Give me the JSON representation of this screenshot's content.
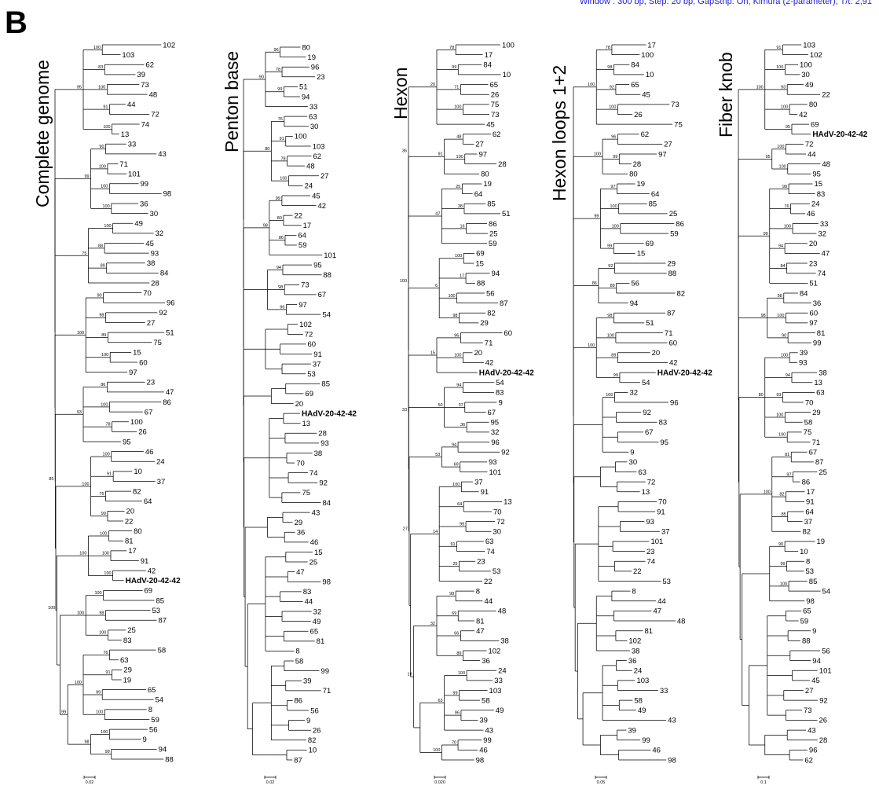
{
  "figure": {
    "panel_label": "B",
    "settings_text": "Window : 300 bp, Step: 20 bp, GapStrip: On, Kimura (2-parameter), T/t: 2,91",
    "settings_color": "#1f1fd6",
    "highlight_label": "HAdV-20-42-42"
  },
  "trees": [
    {
      "title": "Complete genome",
      "scale_label": "0.02",
      "leaves": [
        "102",
        "103",
        "62",
        "39",
        "73",
        "48",
        "44",
        "72",
        "74",
        "13",
        "33",
        "43",
        "71",
        "101",
        "99",
        "98",
        "36",
        "30",
        "49",
        "32",
        "45",
        "93",
        "38",
        "84",
        "28",
        "70",
        "96",
        "92",
        "27",
        "51",
        "75",
        "15",
        "60",
        "97",
        "23",
        "47",
        "86",
        "67",
        "100",
        "26",
        "95",
        "46",
        "24",
        "10",
        "37",
        "82",
        "64",
        "20",
        "22",
        "80",
        "81",
        "17",
        "91",
        "42",
        "HAdV-20-42-42",
        "69",
        "85",
        "53",
        "87",
        "25",
        "83",
        "58",
        "63",
        "29",
        "19",
        "65",
        "54",
        "8",
        "59",
        "56",
        "9",
        "94",
        "88"
      ],
      "support_values": [
        "100",
        "83",
        "100",
        "91",
        "100",
        "95",
        "90",
        "100",
        "100",
        "100",
        "99",
        "100",
        "88",
        "89",
        "75",
        "90",
        "98",
        "89",
        "100",
        "100",
        "86",
        "100",
        "78",
        "93",
        "100",
        "91",
        "75",
        "99",
        "100",
        "100",
        "100",
        "100",
        "100",
        "100",
        "98",
        "100",
        "100",
        "76",
        "91",
        "99",
        "100",
        "100",
        "100",
        "99",
        "98",
        "99",
        "100",
        "85"
      ]
    },
    {
      "title": "Penton base",
      "scale_label": "0.02",
      "leaves": [
        "80",
        "19",
        "96",
        "23",
        "51",
        "94",
        "33",
        "63",
        "30",
        "100",
        "103",
        "62",
        "48",
        "27",
        "24",
        "45",
        "42",
        "22",
        "17",
        "64",
        "59",
        "101",
        "95",
        "88",
        "73",
        "67",
        "97",
        "54",
        "102",
        "72",
        "60",
        "91",
        "37",
        "53",
        "85",
        "69",
        "20",
        "HAdV-20-42-42",
        "13",
        "28",
        "93",
        "38",
        "70",
        "74",
        "92",
        "75",
        "84",
        "43",
        "29",
        "36",
        "46",
        "15",
        "25",
        "47",
        "98",
        "83",
        "44",
        "32",
        "49",
        "65",
        "81",
        "8",
        "58",
        "99",
        "39",
        "71",
        "86",
        "56",
        "9",
        "26",
        "82",
        "10",
        "87"
      ],
      "support_values": [
        "96",
        "78",
        "99",
        "90",
        "76",
        "91",
        "78",
        "100",
        "80",
        "99",
        "80",
        "86",
        "98",
        "94",
        "98",
        "96"
      ]
    },
    {
      "title": "Hexon",
      "scale_label": "0.020",
      "leaves": [
        "100",
        "17",
        "84",
        "10",
        "65",
        "26",
        "75",
        "73",
        "45",
        "62",
        "27",
        "97",
        "28",
        "80",
        "19",
        "64",
        "85",
        "51",
        "86",
        "25",
        "59",
        "69",
        "15",
        "94",
        "88",
        "56",
        "87",
        "82",
        "29",
        "60",
        "71",
        "20",
        "42",
        "HAdV-20-42-42",
        "54",
        "83",
        "9",
        "67",
        "95",
        "32",
        "96",
        "92",
        "93",
        "101",
        "37",
        "91",
        "13",
        "70",
        "72",
        "30",
        "63",
        "74",
        "23",
        "53",
        "22",
        "8",
        "44",
        "48",
        "81",
        "47",
        "38",
        "102",
        "36",
        "24",
        "33",
        "103",
        "58",
        "49",
        "39",
        "43",
        "99",
        "46",
        "98"
      ],
      "support_values": [
        "78",
        "99",
        "71",
        "100",
        "20",
        "48",
        "100",
        "91",
        "25",
        "38",
        "16",
        "47",
        "100",
        "17",
        "100",
        "98",
        "6",
        "96",
        "100",
        "15",
        "94",
        "37",
        "36",
        "50",
        "94",
        "69",
        "53",
        "100",
        "64",
        "99",
        "91",
        "25",
        "14",
        "99",
        "69",
        "66",
        "89",
        "32",
        "100",
        "99",
        "96",
        "63",
        "70",
        "100",
        "19",
        "27",
        "33",
        "100",
        "36",
        "100",
        "19",
        "53",
        "54",
        "99",
        "90",
        "29",
        "15",
        "99",
        "23",
        "100",
        "80"
      ]
    },
    {
      "title": "Hexon loops 1+2",
      "scale_label": "0.05",
      "leaves": [
        "17",
        "100",
        "84",
        "10",
        "65",
        "45",
        "73",
        "26",
        "75",
        "62",
        "27",
        "97",
        "28",
        "80",
        "19",
        "64",
        "85",
        "25",
        "86",
        "59",
        "69",
        "15",
        "29",
        "88",
        "56",
        "82",
        "94",
        "87",
        "51",
        "71",
        "60",
        "20",
        "42",
        "HAdV-20-42-42",
        "54",
        "32",
        "96",
        "92",
        "83",
        "67",
        "95",
        "9",
        "30",
        "63",
        "72",
        "13",
        "70",
        "91",
        "93",
        "37",
        "101",
        "23",
        "74",
        "22",
        "53",
        "8",
        "44",
        "47",
        "48",
        "81",
        "102",
        "38",
        "36",
        "24",
        "103",
        "33",
        "58",
        "49",
        "43",
        "39",
        "99",
        "46",
        "98"
      ],
      "support_values": [
        "78",
        "98",
        "92",
        "100",
        "100",
        "96",
        "99",
        "100",
        "97",
        "100",
        "100",
        "99",
        "99",
        "92",
        "89",
        "86",
        "98",
        "100",
        "89",
        "99",
        "100",
        "100"
      ]
    },
    {
      "title": "Fiber knob",
      "scale_label": "0.1",
      "leaves": [
        "103",
        "102",
        "100",
        "30",
        "49",
        "22",
        "80",
        "42",
        "69",
        "HAdV-20-42-42",
        "72",
        "44",
        "48",
        "95",
        "15",
        "83",
        "24",
        "46",
        "33",
        "32",
        "20",
        "47",
        "23",
        "74",
        "51",
        "84",
        "36",
        "60",
        "97",
        "81",
        "99",
        "39",
        "93",
        "38",
        "13",
        "63",
        "70",
        "29",
        "58",
        "75",
        "71",
        "67",
        "87",
        "25",
        "86",
        "17",
        "91",
        "64",
        "37",
        "82",
        "19",
        "10",
        "8",
        "53",
        "85",
        "54",
        "98",
        "65",
        "59",
        "9",
        "88",
        "56",
        "94",
        "101",
        "45",
        "27",
        "92",
        "73",
        "26",
        "43",
        "28",
        "96",
        "62"
      ],
      "support_values": [
        "91",
        "100",
        "93",
        "100",
        "95",
        "100",
        "100",
        "100",
        "95",
        "99",
        "76",
        "100",
        "94",
        "84",
        "99",
        "98",
        "100",
        "90",
        "98",
        "100",
        "94",
        "93",
        "100",
        "100",
        "80",
        "81",
        "97",
        "82",
        "85",
        "100",
        "90",
        "99",
        "100"
      ]
    }
  ]
}
